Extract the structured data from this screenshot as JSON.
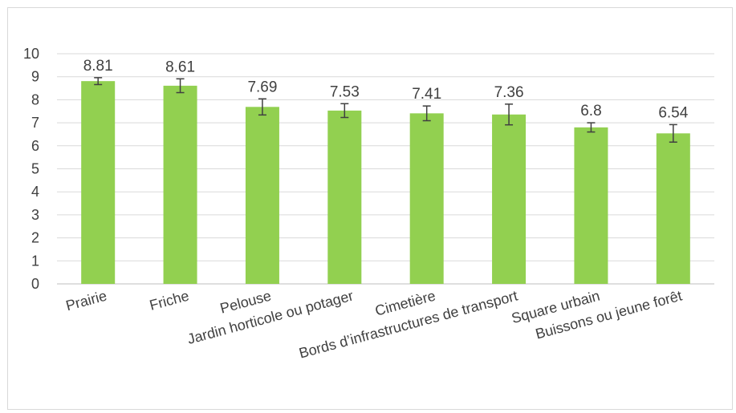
{
  "chart_data": {
    "type": "bar",
    "categories": [
      "Prairie",
      "Friche",
      "Pelouse",
      "Jardin horticole ou potager",
      "Cimetière",
      "Bords d’infrastructures de transport",
      "Square urbain",
      "Buissons ou jeune forêt"
    ],
    "values": [
      8.81,
      8.61,
      7.69,
      7.53,
      7.41,
      7.36,
      6.8,
      6.54
    ],
    "data_labels": [
      "8.81",
      "8.61",
      "7.69",
      "7.53",
      "7.41",
      "7.36",
      "6.8",
      "6.54"
    ],
    "error": [
      0.15,
      0.3,
      0.35,
      0.3,
      0.32,
      0.45,
      0.2,
      0.38
    ],
    "ylim": [
      0,
      10
    ],
    "yticks": [
      "0",
      "1",
      "2",
      "3",
      "4",
      "5",
      "6",
      "7",
      "8",
      "9",
      "10"
    ],
    "grid": true,
    "legend": "none",
    "title": "",
    "xlabel": "",
    "ylabel": ""
  },
  "colors": {
    "bar": "#92d050",
    "grid": "#d9d9d9",
    "axis": "#bfbfbf",
    "error_bar": "#404040",
    "text": "#404040"
  }
}
